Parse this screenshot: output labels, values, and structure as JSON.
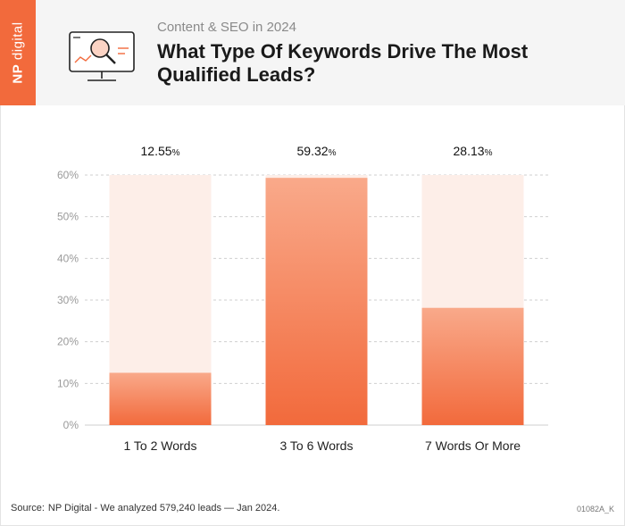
{
  "brand": {
    "np": "NP",
    "name": "digital"
  },
  "header": {
    "subtitle": "Content & SEO in 2024",
    "title": "What Type Of Keywords Drive The Most Qualified Leads?",
    "icon": "magnifier-monitor-icon"
  },
  "chart_data": {
    "type": "bar",
    "title": "What Type Of Keywords Drive The Most Qualified Leads?",
    "categories": [
      "1 To 2 Words",
      "3 To 6 Words",
      "7 Words Or More"
    ],
    "values": [
      12.55,
      59.32,
      28.13
    ],
    "value_labels": [
      "12.55",
      "59.32",
      "28.13"
    ],
    "unit": "%",
    "ylim": [
      0,
      60
    ],
    "yticks": [
      "0%",
      "10%",
      "20%",
      "30%",
      "40%",
      "50%",
      "60%"
    ],
    "grid": true,
    "colors": {
      "bar_top": "#f9a98a",
      "bar_bottom": "#f26a3c",
      "track": "#fdeee8"
    }
  },
  "footer": {
    "source_label": "Source:",
    "source": "NP Digital - We analyzed 579,240 leads — Jan 2024.",
    "code": "01082A_K"
  }
}
